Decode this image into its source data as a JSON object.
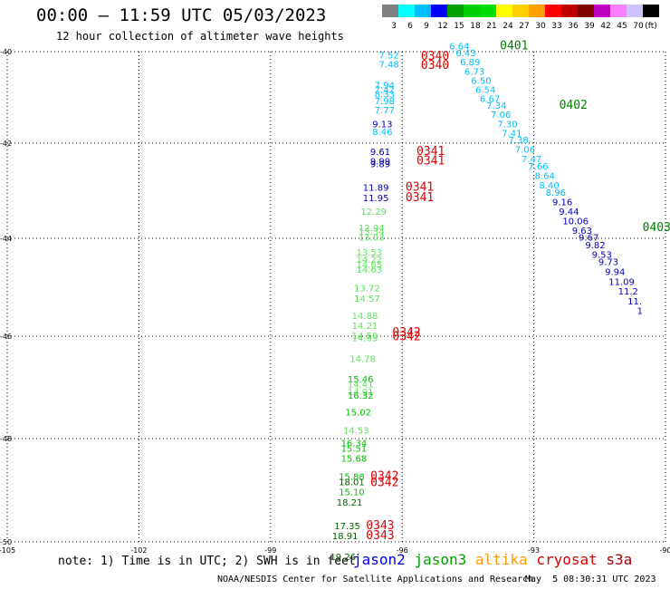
{
  "title": "00:00 – 11:59 UTC 05/03/2023",
  "subtitle": "12 hour collection of altimeter wave heights",
  "scale": {
    "colors": [
      "#808080",
      "#00ffff",
      "#00bfff",
      "#0000ff",
      "#00a000",
      "#00d000",
      "#00e000",
      "#ffff00",
      "#ffd000",
      "#ffa000",
      "#ff0000",
      "#c00000",
      "#800000",
      "#c000c0",
      "#ff80ff",
      "#d0c0ff",
      "#000000"
    ],
    "labels": [
      "3",
      "6",
      "9",
      "12",
      "15",
      "18",
      "21",
      "24",
      "27",
      "30",
      "33",
      "36",
      "39",
      "42",
      "45",
      "70",
      "(ft)"
    ]
  },
  "axes": {
    "lat_labels": [
      "-40",
      "-42",
      "-44",
      "-46",
      "-48",
      "-50"
    ],
    "lon_labels": [
      "-105",
      "-102",
      "-99",
      "-96",
      "-93",
      "-90"
    ]
  },
  "observations": [
    {
      "v": "7.52",
      "lat": -40.15,
      "lon": -96.3,
      "c": "#00bfff"
    },
    {
      "v": "7.48",
      "lat": -40.35,
      "lon": -96.3,
      "c": "#00bfff"
    },
    {
      "v": "7.94",
      "lat": -40.8,
      "lon": -96.4,
      "c": "#00bfff"
    },
    {
      "v": "7.42",
      "lat": -40.9,
      "lon": -96.4,
      "c": "#00bfff"
    },
    {
      "v": "8.33",
      "lat": -41.0,
      "lon": -96.4,
      "c": "#00bfff"
    },
    {
      "v": "7.98",
      "lat": -41.15,
      "lon": -96.4,
      "c": "#00bfff"
    },
    {
      "v": "7.77",
      "lat": -41.35,
      "lon": -96.4,
      "c": "#00bfff"
    },
    {
      "v": "9.13",
      "lat": -41.65,
      "lon": -96.45,
      "c": "#0000c0"
    },
    {
      "v": "8.46",
      "lat": -41.82,
      "lon": -96.45,
      "c": "#00bfff"
    },
    {
      "v": "9.61",
      "lat": -42.25,
      "lon": -96.5,
      "c": "#0000c0"
    },
    {
      "v": "9.99",
      "lat": -42.45,
      "lon": -96.5,
      "c": "#0000c0"
    },
    {
      "v": "9.89",
      "lat": -42.5,
      "lon": -96.5,
      "c": "#0000c0"
    },
    {
      "v": "11.89",
      "lat": -43.0,
      "lon": -96.6,
      "c": "#0000c0"
    },
    {
      "v": "11.95",
      "lat": -43.22,
      "lon": -96.6,
      "c": "#0000c0"
    },
    {
      "v": "12.29",
      "lat": -43.5,
      "lon": -96.65,
      "c": "#60e060"
    },
    {
      "v": "12.94",
      "lat": -43.85,
      "lon": -96.7,
      "c": "#60e060"
    },
    {
      "v": "13.34",
      "lat": -43.92,
      "lon": -96.7,
      "c": "#60e060"
    },
    {
      "v": "13.03",
      "lat": -44.05,
      "lon": -96.7,
      "c": "#60e060"
    },
    {
      "v": "13.53",
      "lat": -44.35,
      "lon": -96.75,
      "c": "#60e060"
    },
    {
      "v": "14.22",
      "lat": -44.5,
      "lon": -96.75,
      "c": "#60e060"
    },
    {
      "v": "14.65",
      "lat": -44.6,
      "lon": -96.75,
      "c": "#60e060"
    },
    {
      "v": "14.63",
      "lat": -44.7,
      "lon": -96.75,
      "c": "#60e060"
    },
    {
      "v": "13.72",
      "lat": -45.08,
      "lon": -96.8,
      "c": "#60e060"
    },
    {
      "v": "14.57",
      "lat": -45.3,
      "lon": -96.8,
      "c": "#60e060"
    },
    {
      "v": "14.88",
      "lat": -45.65,
      "lon": -96.85,
      "c": "#60e060"
    },
    {
      "v": "14.21",
      "lat": -45.85,
      "lon": -96.85,
      "c": "#60e060"
    },
    {
      "v": "14.50",
      "lat": -46.05,
      "lon": -96.85,
      "c": "#60e060"
    },
    {
      "v": "14.65",
      "lat": -46.1,
      "lon": -96.85,
      "c": "#60e060"
    },
    {
      "v": "14.78",
      "lat": -46.5,
      "lon": -96.9,
      "c": "#60e060"
    },
    {
      "v": "15.46",
      "lat": -46.9,
      "lon": -96.95,
      "c": "#00c000"
    },
    {
      "v": "14.41",
      "lat": -47.0,
      "lon": -96.95,
      "c": "#60e060"
    },
    {
      "v": "14.91",
      "lat": -47.15,
      "lon": -96.95,
      "c": "#60e060"
    },
    {
      "v": "16.32",
      "lat": -47.22,
      "lon": -96.95,
      "c": "#00c000"
    },
    {
      "v": "15.02",
      "lat": -47.55,
      "lon": -97.0,
      "c": "#00c000"
    },
    {
      "v": "14.53",
      "lat": -47.9,
      "lon": -97.05,
      "c": "#60e060"
    },
    {
      "v": "16.34",
      "lat": -48.15,
      "lon": -97.1,
      "c": "#00c000"
    },
    {
      "v": "15.51",
      "lat": -48.25,
      "lon": -97.1,
      "c": "#00c000"
    },
    {
      "v": "15.68",
      "lat": -48.45,
      "lon": -97.1,
      "c": "#00c000"
    },
    {
      "v": "15.88",
      "lat": -48.8,
      "lon": -97.15,
      "c": "#00c000"
    },
    {
      "v": "18.01",
      "lat": -48.9,
      "lon": -97.15,
      "c": "#006000"
    },
    {
      "v": "15.10",
      "lat": -49.1,
      "lon": -97.15,
      "c": "#00c000"
    },
    {
      "v": "18.21",
      "lat": -49.3,
      "lon": -97.2,
      "c": "#006000"
    },
    {
      "v": "17.35",
      "lat": -49.75,
      "lon": -97.25,
      "c": "#006000"
    },
    {
      "v": "18.91",
      "lat": -49.95,
      "lon": -97.3,
      "c": "#006000"
    },
    {
      "v": "19.26",
      "lat": -50.35,
      "lon": -97.35,
      "c": "#006000"
    },
    {
      "v": "6.64",
      "lat": -39.95,
      "lon": -94.7,
      "c": "#00bfff"
    },
    {
      "v": "6.43",
      "lat": -40.1,
      "lon": -94.55,
      "c": "#00bfff"
    },
    {
      "v": "6.89",
      "lat": -40.3,
      "lon": -94.45,
      "c": "#00bfff"
    },
    {
      "v": "6.73",
      "lat": -40.5,
      "lon": -94.35,
      "c": "#00bfff"
    },
    {
      "v": "6.50",
      "lat": -40.7,
      "lon": -94.2,
      "c": "#00bfff"
    },
    {
      "v": "6.54",
      "lat": -40.9,
      "lon": -94.1,
      "c": "#00bfff"
    },
    {
      "v": "6.67",
      "lat": -41.1,
      "lon": -94.0,
      "c": "#00bfff"
    },
    {
      "v": "7.34",
      "lat": -41.25,
      "lon": -93.85,
      "c": "#00bfff"
    },
    {
      "v": "7.06",
      "lat": -41.45,
      "lon": -93.75,
      "c": "#00bfff"
    },
    {
      "v": "7.30",
      "lat": -41.65,
      "lon": -93.6,
      "c": "#00bfff"
    },
    {
      "v": "7.41",
      "lat": -41.85,
      "lon": -93.5,
      "c": "#00bfff"
    },
    {
      "v": "7.38",
      "lat": -42.0,
      "lon": -93.35,
      "c": "#00bfff"
    },
    {
      "v": "7.06",
      "lat": -42.2,
      "lon": -93.2,
      "c": "#00bfff"
    },
    {
      "v": "7.47",
      "lat": -42.4,
      "lon": -93.05,
      "c": "#00bfff"
    },
    {
      "v": "7.66",
      "lat": -42.55,
      "lon": -92.9,
      "c": "#00bfff"
    },
    {
      "v": "8.64",
      "lat": -42.75,
      "lon": -92.75,
      "c": "#00bfff"
    },
    {
      "v": "8.40",
      "lat": -42.95,
      "lon": -92.65,
      "c": "#00bfff"
    },
    {
      "v": "8.96",
      "lat": -43.1,
      "lon": -92.5,
      "c": "#00bfff"
    },
    {
      "v": "9.16",
      "lat": -43.3,
      "lon": -92.35,
      "c": "#0000c0"
    },
    {
      "v": "9.44",
      "lat": -43.5,
      "lon": -92.2,
      "c": "#0000c0"
    },
    {
      "v": "10.06",
      "lat": -43.7,
      "lon": -92.05,
      "c": "#0000c0"
    },
    {
      "v": "9.63",
      "lat": -43.9,
      "lon": -91.9,
      "c": "#0000c0"
    },
    {
      "v": "9.67",
      "lat": -44.05,
      "lon": -91.75,
      "c": "#0000c0"
    },
    {
      "v": "9.82",
      "lat": -44.2,
      "lon": -91.6,
      "c": "#0000c0"
    },
    {
      "v": "9.53",
      "lat": -44.4,
      "lon": -91.45,
      "c": "#0000c0"
    },
    {
      "v": "9.73",
      "lat": -44.55,
      "lon": -91.3,
      "c": "#0000c0"
    },
    {
      "v": "9.94",
      "lat": -44.75,
      "lon": -91.15,
      "c": "#0000c0"
    },
    {
      "v": "11.09",
      "lat": -44.95,
      "lon": -91.0,
      "c": "#0000c0"
    },
    {
      "v": "11.2",
      "lat": -45.15,
      "lon": -90.85,
      "c": "#0000c0"
    },
    {
      "v": "11.",
      "lat": -45.35,
      "lon": -90.7,
      "c": "#0000c0"
    },
    {
      "v": "1 ",
      "lat": -45.55,
      "lon": -90.55,
      "c": "#0000c0"
    }
  ],
  "times": [
    {
      "t": "0340",
      "lat": -40.18,
      "lon": -95.25,
      "c": "#e00000"
    },
    {
      "t": "0340",
      "lat": -40.38,
      "lon": -95.25,
      "c": "#e00000"
    },
    {
      "t": "0341",
      "lat": -42.25,
      "lon": -95.35,
      "c": "#e00000"
    },
    {
      "t": "0341",
      "lat": -42.45,
      "lon": -95.35,
      "c": "#e00000"
    },
    {
      "t": "0341",
      "lat": -43.0,
      "lon": -95.6,
      "c": "#e00000"
    },
    {
      "t": "0341",
      "lat": -43.22,
      "lon": -95.6,
      "c": "#e00000"
    },
    {
      "t": "0342",
      "lat": -46.0,
      "lon": -95.9,
      "c": "#e00000"
    },
    {
      "t": "0342",
      "lat": -46.08,
      "lon": -95.9,
      "c": "#e00000"
    },
    {
      "t": "0342",
      "lat": -48.8,
      "lon": -96.4,
      "c": "#e00000"
    },
    {
      "t": "0342",
      "lat": -48.92,
      "lon": -96.4,
      "c": "#e00000"
    },
    {
      "t": "0343",
      "lat": -49.75,
      "lon": -96.5,
      "c": "#e00000"
    },
    {
      "t": "0343",
      "lat": -49.95,
      "lon": -96.5,
      "c": "#e00000"
    },
    {
      "t": "0401",
      "lat": -39.95,
      "lon": -93.45,
      "c": "#008000"
    },
    {
      "t": "0402",
      "lat": -41.25,
      "lon": -92.1,
      "c": "#008000"
    },
    {
      "t": "0403",
      "lat": -43.85,
      "lon": -90.2,
      "c": "#008000"
    }
  ],
  "note": "note: 1) Time is in UTC; 2) SWH is in feet",
  "legend": [
    {
      "label": "jason2",
      "color": "#0000ff"
    },
    {
      "label": "jason3",
      "color": "#00a000"
    },
    {
      "label": "altika",
      "color": "#ff9900"
    },
    {
      "label": "cryosat",
      "color": "#dd0000"
    },
    {
      "label": "s3a",
      "color": "#990000"
    }
  ],
  "credit": "NOAA/NESDIS Center for Satellite Applications and Research",
  "timestamp": "May  5 08:30:31 UTC 2023"
}
